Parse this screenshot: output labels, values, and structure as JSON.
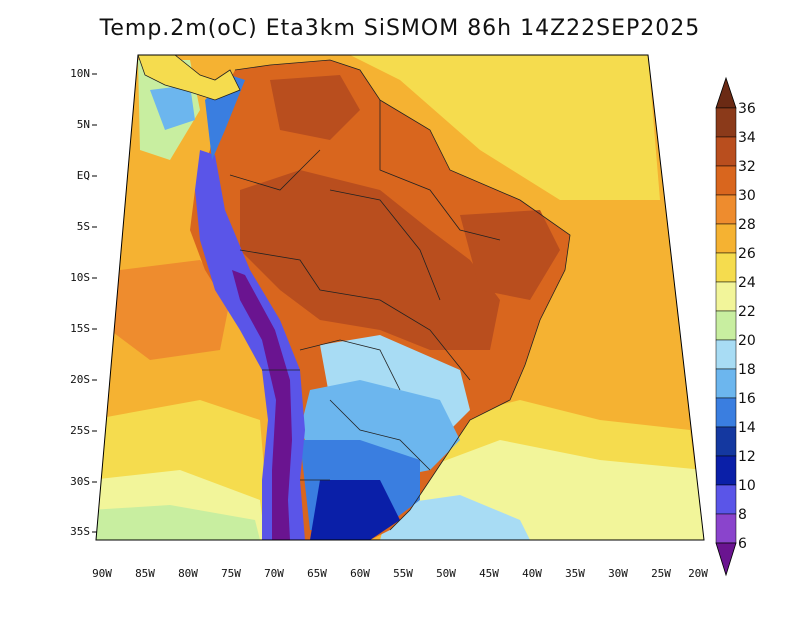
{
  "title": "Temp.2m(oC) Eta3km SiSMOM 86h 14Z22SEP2025",
  "latitude_labels": [
    "10N",
    "5N",
    "EQ",
    "5S",
    "10S",
    "15S",
    "20S",
    "25S",
    "30S",
    "35S"
  ],
  "longitude_labels": [
    "90W",
    "85W",
    "80W",
    "75W",
    "70W",
    "65W",
    "60W",
    "55W",
    "50W",
    "45W",
    "40W",
    "35W",
    "30W",
    "25W",
    "20W"
  ],
  "colorbar": {
    "labels": [
      "36",
      "34",
      "32",
      "30",
      "28",
      "26",
      "24",
      "22",
      "20",
      "18",
      "16",
      "14",
      "12",
      "10",
      "8",
      "6"
    ],
    "colors": [
      "#6b2a14",
      "#8b3a1a",
      "#b94e1e",
      "#d9661e",
      "#ee8c2e",
      "#f5b232",
      "#f5dc4e",
      "#f2f59a",
      "#c8eea0",
      "#a8dcf4",
      "#6cb6ee",
      "#3a7ee0",
      "#1438a0",
      "#0a1fa8",
      "#5a55e8",
      "#8a44cc",
      "#6a1490"
    ]
  },
  "map_colors": {
    "ocean_warm": "#f5b232",
    "ocean_mild": "#f5dc4e",
    "ocean_cool": "#f2f59a",
    "land_hot": "#d9661e",
    "land_very_hot": "#b94e1e",
    "andes": "#6a1490",
    "south_cold": "#1438a0"
  }
}
